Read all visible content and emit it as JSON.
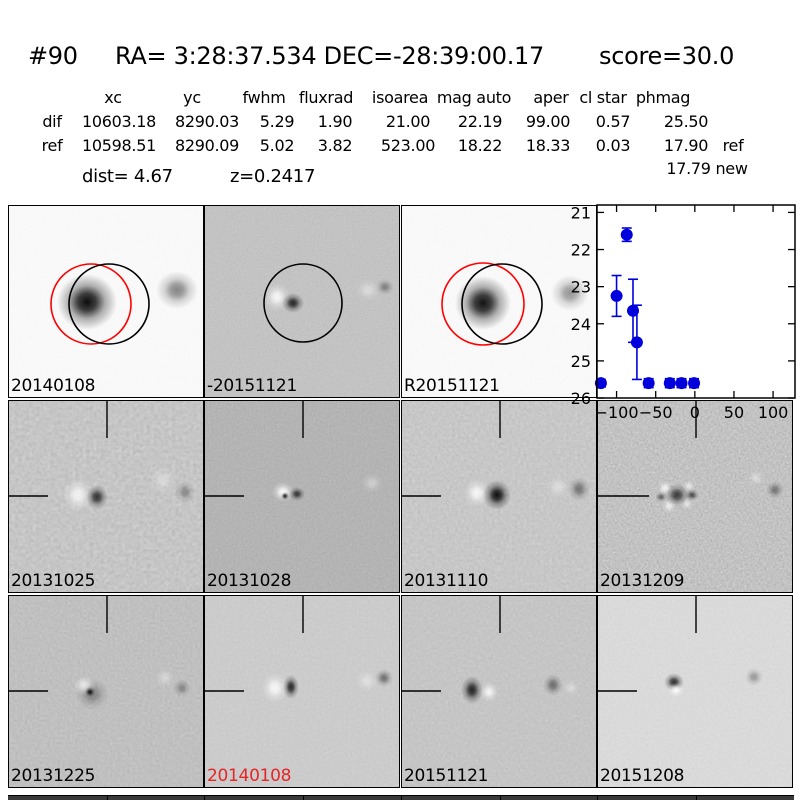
{
  "header": {
    "id": "#90",
    "ra_dec": "RA= 3:28:37.534 DEC=-28:39:00.17",
    "score": "score=30.0"
  },
  "photometry_table": {
    "columns": [
      "xc",
      "yc",
      "fwhm",
      "fluxrad",
      "isoarea",
      "mag auto",
      "aper",
      "cl star",
      "phmag"
    ],
    "rows": [
      {
        "label": "dif",
        "values": [
          "10603.18",
          "8290.03",
          "5.29",
          "1.90",
          "21.00",
          "22.19",
          "99.00",
          "0.57",
          "25.50"
        ],
        "suffix": ""
      },
      {
        "label": "ref",
        "values": [
          "10598.51",
          "8290.09",
          "5.02",
          "3.82",
          "523.00",
          "18.22",
          "18.33",
          "0.03",
          "17.90"
        ],
        "suffix": "ref"
      }
    ],
    "extra_phmag": "17.79 new",
    "dist": "dist=  4.67",
    "z": "z=0.2417"
  },
  "cutouts": [
    {
      "label": "20140108",
      "label_color": "#000000",
      "type": "reference-image"
    },
    {
      "label": "-20151121",
      "label_color": "#000000",
      "type": "difference-image"
    },
    {
      "label": "R20151121",
      "label_color": "#000000",
      "type": "reference-image"
    },
    {
      "label": "20131025",
      "label_color": "#000000",
      "type": "difference-image"
    },
    {
      "label": "20131028",
      "label_color": "#000000",
      "type": "difference-image"
    },
    {
      "label": "20131110",
      "label_color": "#000000",
      "type": "difference-image"
    },
    {
      "label": "20131209",
      "label_color": "#000000",
      "type": "difference-image"
    },
    {
      "label": "20131225",
      "label_color": "#000000",
      "type": "difference-image"
    },
    {
      "label": "20140108",
      "label_color": "#e62626",
      "type": "difference-image"
    },
    {
      "label": "20151121",
      "label_color": "#000000",
      "type": "difference-image"
    },
    {
      "label": "20151208",
      "label_color": "#000000",
      "type": "difference-image"
    }
  ],
  "chart_data": {
    "type": "scatter",
    "title": "",
    "xlabel": "",
    "ylabel": "",
    "xlim": [
      -125,
      128
    ],
    "ylim": [
      26.0,
      20.8
    ],
    "y_inverted": true,
    "grid": false,
    "xticks": [
      -100,
      -50,
      0,
      50,
      100
    ],
    "yticks": [
      21,
      22,
      23,
      24,
      25,
      26
    ],
    "marker_color": "#0000dd",
    "series": [
      {
        "name": "light curve (mag vs days)",
        "points": [
          {
            "x": -120,
            "mag": 25.6,
            "err": 0.1
          },
          {
            "x": -100,
            "mag": 23.25,
            "err": 0.55
          },
          {
            "x": -87,
            "mag": 21.6,
            "err": 0.18
          },
          {
            "x": -79,
            "mag": 23.65,
            "err": 0.85
          },
          {
            "x": -74,
            "mag": 24.5,
            "err": 1.0
          },
          {
            "x": -59,
            "mag": 25.6,
            "err": 0.12
          },
          {
            "x": -32,
            "mag": 25.6,
            "err": 0.12
          },
          {
            "x": -17,
            "mag": 25.6,
            "err": 0.12
          },
          {
            "x": -1,
            "mag": 25.6,
            "err": 0.12
          }
        ]
      }
    ]
  }
}
